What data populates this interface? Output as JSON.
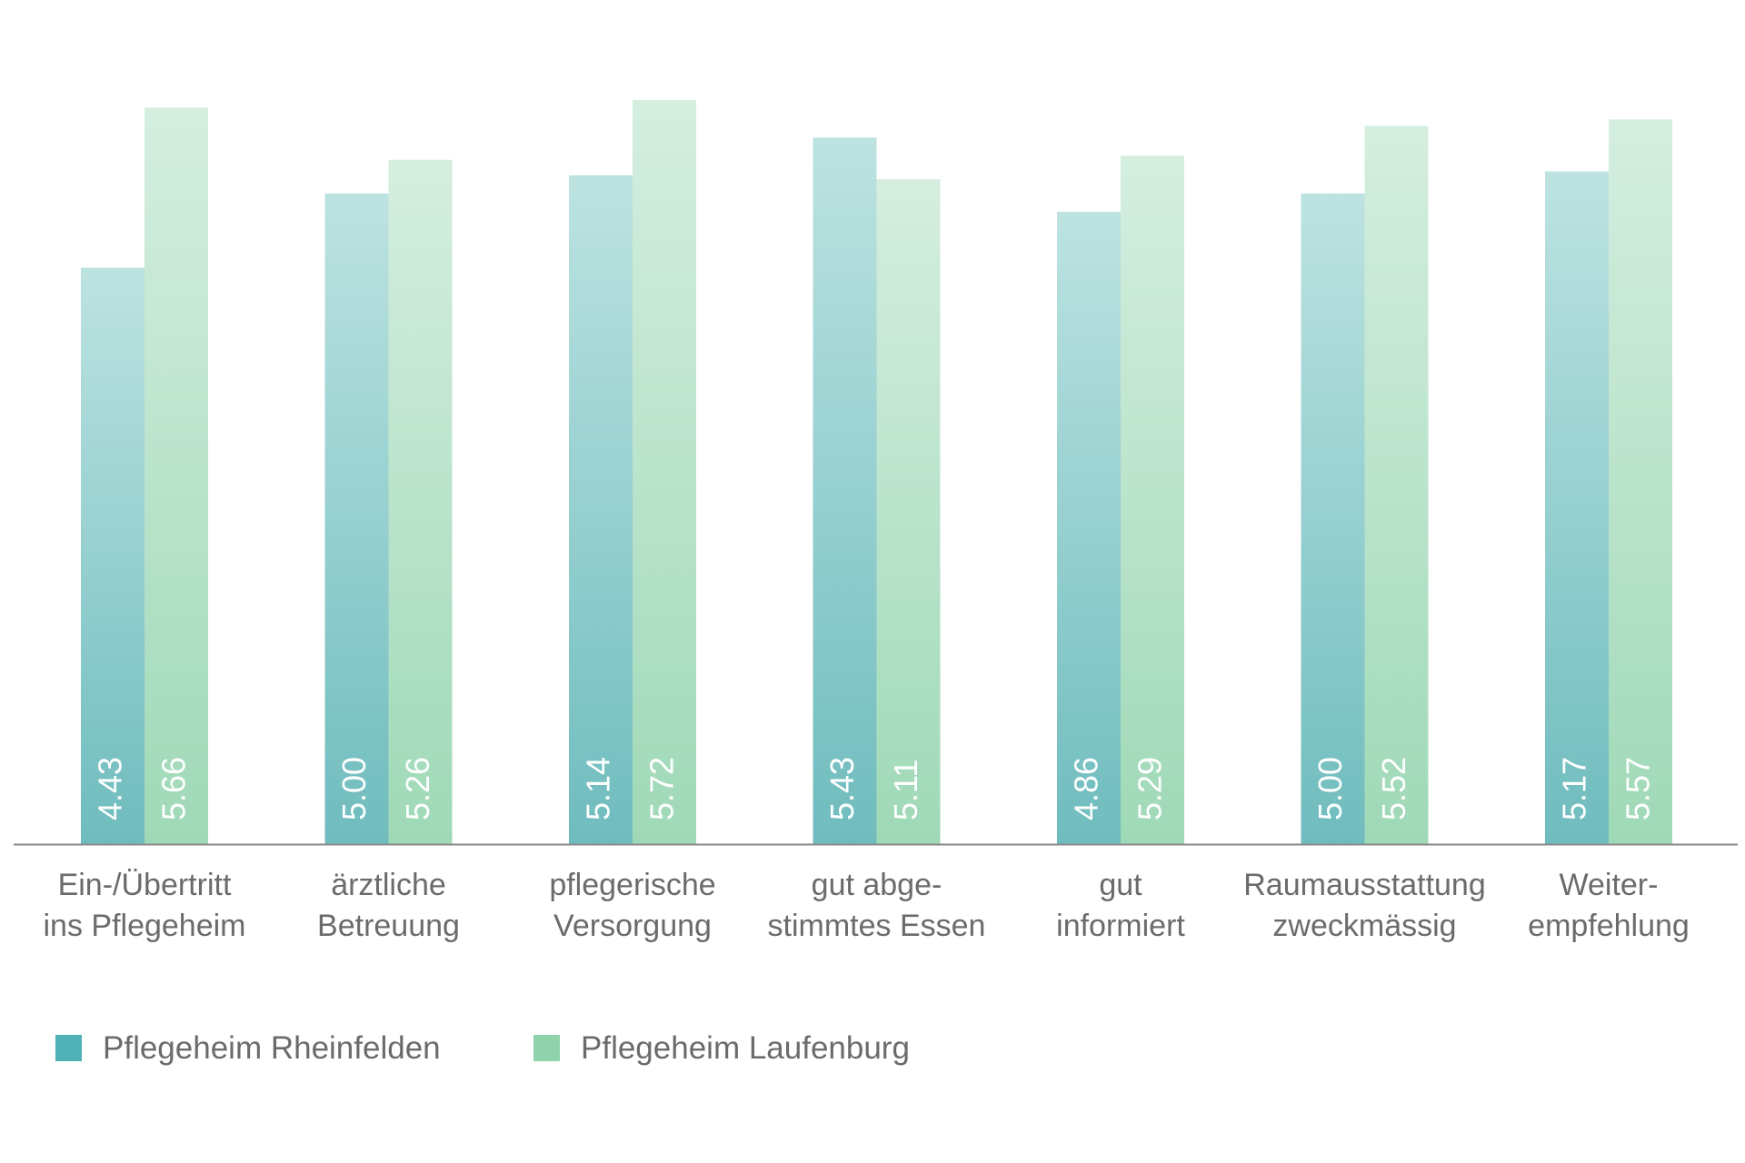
{
  "chart_data": {
    "type": "bar",
    "categories": [
      [
        "Ein-/Übertritt",
        "ins Pflegeheim"
      ],
      [
        "ärztliche",
        "Betreuung"
      ],
      [
        "pflegerische",
        "Versorgung"
      ],
      [
        "gut abge-",
        "stimmtes Essen"
      ],
      [
        "gut",
        "informiert"
      ],
      [
        "Raumausstattung",
        "zweckmässig"
      ],
      [
        "Weiter-",
        "empfehlung"
      ]
    ],
    "series": [
      {
        "name": "Pflegeheim Rheinfelden",
        "values": [
          4.43,
          5.0,
          5.14,
          5.43,
          4.86,
          5.0,
          5.17
        ],
        "labels": [
          "4.43",
          "5.00",
          "5.14",
          "5.43",
          "4.86",
          "5.00",
          "5.17"
        ],
        "color_top": "#bde3e1",
        "color_bottom": "#6fbcbe",
        "legend_color": "#4fb0b5"
      },
      {
        "name": "Pflegeheim Laufenburg",
        "values": [
          5.66,
          5.26,
          5.72,
          5.11,
          5.29,
          5.52,
          5.57
        ],
        "labels": [
          "5.66",
          "5.26",
          "5.72",
          "5.11",
          "5.29",
          "5.52",
          "5.57"
        ],
        "color_top": "#d5eee0",
        "color_bottom": "#9fd9b7",
        "legend_color": "#8fd2ab"
      }
    ],
    "ylim": [
      0,
      6
    ],
    "grid": false,
    "legend_position": "bottom-left",
    "text_color": "#6b6b6b",
    "axis_color": "#8a8a8a"
  }
}
